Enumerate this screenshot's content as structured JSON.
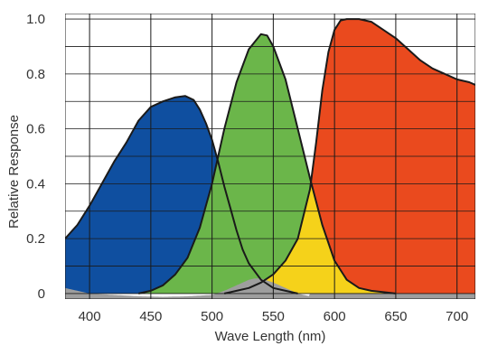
{
  "chart_data": {
    "type": "area",
    "title": "",
    "xlabel": "Wave Length (nm)",
    "ylabel": "Relative Response",
    "xlim": [
      380,
      715
    ],
    "ylim": [
      -0.02,
      1.02
    ],
    "x_ticks": [
      400,
      450,
      500,
      550,
      600,
      650,
      700
    ],
    "x_tick_labels": [
      "400",
      "450",
      "500",
      "550",
      "600",
      "650",
      "700"
    ],
    "y_ticks": [
      0,
      0.2,
      0.4,
      0.6,
      0.8,
      1.0
    ],
    "y_tick_labels": [
      "0",
      "0.2",
      "0.4",
      "0.6",
      "0.8",
      "1.0"
    ],
    "x_grid": [
      400,
      450,
      500,
      550,
      600,
      650,
      700
    ],
    "y_grid": [
      0,
      0.1,
      0.2,
      0.3,
      0.4,
      0.5,
      0.6,
      0.7,
      0.8,
      0.9,
      1.0
    ],
    "grid": true,
    "colors": {
      "blue": "#0f4fa0",
      "light_blue": "#8fd0d6",
      "green": "#6bb64a",
      "yellow": "#f5d21a",
      "red": "#ea4a1e",
      "gray": "#9e9e9e",
      "outline": "#1a1a1a"
    },
    "series": [
      {
        "key": "blue",
        "x": [
          380,
          390,
          400,
          410,
          420,
          430,
          440,
          450,
          460,
          470,
          478,
          485,
          490,
          495,
          500,
          505,
          510,
          515,
          520,
          525,
          530,
          540,
          550,
          560,
          570
        ],
        "y": [
          0.2,
          0.25,
          0.32,
          0.4,
          0.48,
          0.55,
          0.63,
          0.68,
          0.7,
          0.715,
          0.72,
          0.705,
          0.67,
          0.62,
          0.56,
          0.48,
          0.39,
          0.31,
          0.23,
          0.16,
          0.11,
          0.05,
          0.02,
          0.01,
          0.0
        ]
      },
      {
        "key": "green",
        "x": [
          440,
          450,
          460,
          470,
          480,
          490,
          500,
          510,
          520,
          530,
          540,
          545,
          550,
          560,
          570,
          580,
          590,
          600,
          610,
          620,
          630,
          640,
          650
        ],
        "y": [
          0.0,
          0.01,
          0.03,
          0.07,
          0.13,
          0.24,
          0.4,
          0.6,
          0.77,
          0.89,
          0.945,
          0.94,
          0.9,
          0.78,
          0.6,
          0.42,
          0.25,
          0.12,
          0.05,
          0.02,
          0.01,
          0.005,
          0.0
        ]
      },
      {
        "key": "red",
        "x": [
          510,
          520,
          530,
          540,
          550,
          560,
          570,
          580,
          585,
          590,
          595,
          600,
          605,
          610,
          620,
          630,
          640,
          650,
          660,
          670,
          680,
          690,
          700,
          710,
          715
        ],
        "y": [
          0.0,
          0.01,
          0.02,
          0.04,
          0.07,
          0.12,
          0.2,
          0.38,
          0.55,
          0.74,
          0.88,
          0.96,
          0.995,
          1.0,
          1.0,
          0.99,
          0.96,
          0.93,
          0.89,
          0.85,
          0.82,
          0.8,
          0.78,
          0.77,
          0.76
        ]
      },
      {
        "key": "gray",
        "x": [
          380,
          400,
          420,
          440,
          460,
          480,
          500,
          510,
          520,
          530,
          535,
          540,
          550,
          560,
          570,
          580
        ],
        "y": [
          0.02,
          0.0,
          -0.005,
          -0.01,
          -0.012,
          -0.01,
          -0.005,
          0.01,
          0.03,
          0.05,
          0.055,
          0.055,
          0.04,
          0.02,
          0.0,
          -0.01
        ]
      }
    ]
  }
}
